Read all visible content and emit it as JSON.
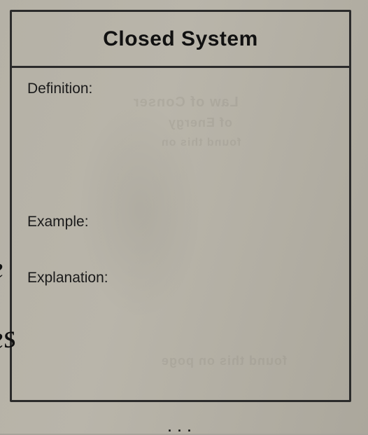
{
  "worksheet": {
    "heading": "Closed System",
    "definition_label": "Definition:",
    "example_label": "Example:",
    "explanation_label": "Explanation:"
  },
  "bleed_through": {
    "line1": "Law of Conser",
    "line2": "of Energy",
    "line3": "found this on",
    "line4": "found this on poge"
  },
  "handwriting": {
    "mark1": "e",
    "mark2": "es"
  },
  "footer_fragment": ". . ."
}
